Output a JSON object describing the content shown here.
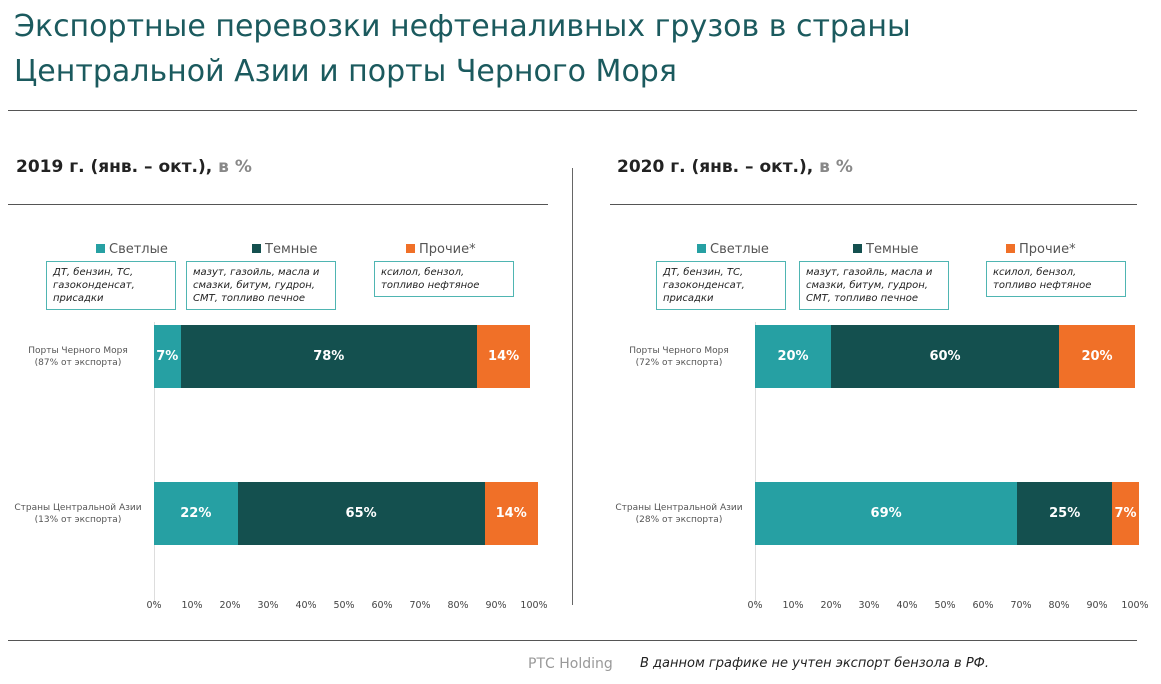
{
  "title_line1": "Экспортные перевозки нефтеналивных грузов в страны",
  "title_line2": "Центральной Азии и порты Черного Моря",
  "legend": [
    {
      "label": "Светлые",
      "color": "#26a0a3",
      "desc": [
        "ДТ, бензин, ТС,",
        "газоконденсат,",
        "присадки"
      ]
    },
    {
      "label": "Темные",
      "color": "#14504f",
      "desc": [
        "мазут, газойль, масла и",
        "смазки, битум, гудрон,",
        "СМТ, топливо печное"
      ]
    },
    {
      "label": "Прочие*",
      "color": "#f07028",
      "desc": [
        "ксилол, бензол,",
        "топливо нефтяное"
      ]
    }
  ],
  "footer": {
    "brand": "РТС Holding",
    "note": "В данном графике не учтен экспорт бензола в РФ."
  },
  "chart_data": [
    {
      "type": "bar",
      "stacked": true,
      "orientation": "horizontal",
      "title": "2019 г. (янв. – окт.),",
      "unit": "в %",
      "categories": [
        {
          "name": "Порты Черного Моря",
          "share": "(87% от экспорта)"
        },
        {
          "name": "Страны Центральной Азии",
          "share": "(13% от экспорта)"
        }
      ],
      "series": [
        {
          "name": "Светлые",
          "values": [
            7,
            22
          ]
        },
        {
          "name": "Темные",
          "values": [
            78,
            65
          ]
        },
        {
          "name": "Прочие*",
          "values": [
            14,
            14
          ]
        }
      ],
      "xlim": [
        0,
        100
      ],
      "ticks": [
        "0%",
        "10%",
        "20%",
        "30%",
        "40%",
        "50%",
        "60%",
        "70%",
        "80%",
        "90%",
        "100%"
      ]
    },
    {
      "type": "bar",
      "stacked": true,
      "orientation": "horizontal",
      "title": "2020 г. (янв. – окт.),",
      "unit": "в %",
      "categories": [
        {
          "name": "Порты Черного Моря",
          "share": "(72% от экспорта)"
        },
        {
          "name": "Страны Центральной Азии",
          "share": "(28% от экспорта)"
        }
      ],
      "series": [
        {
          "name": "Светлые",
          "values": [
            20,
            69
          ]
        },
        {
          "name": "Темные",
          "values": [
            60,
            25
          ]
        },
        {
          "name": "Прочие*",
          "values": [
            20,
            7
          ]
        }
      ],
      "xlim": [
        0,
        100
      ],
      "ticks": [
        "0%",
        "10%",
        "20%",
        "30%",
        "40%",
        "50%",
        "60%",
        "70%",
        "80%",
        "90%",
        "100%"
      ]
    }
  ]
}
